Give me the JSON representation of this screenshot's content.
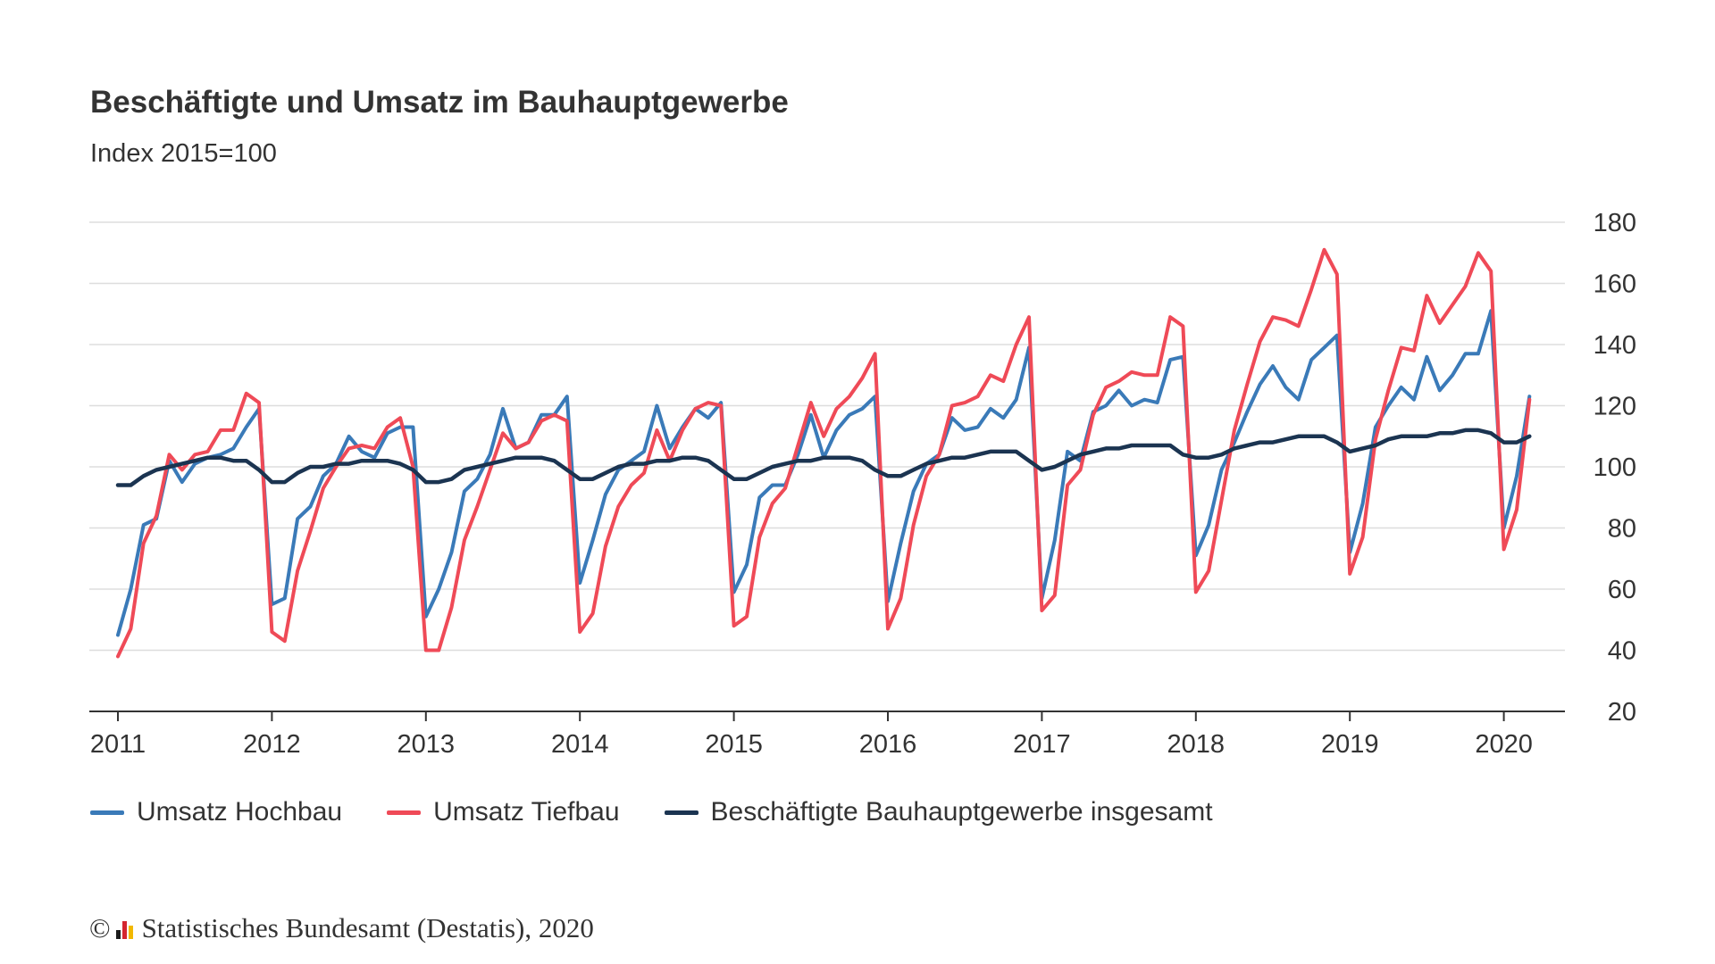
{
  "title": "Beschäftigte und Umsatz im Bauhauptgewerbe",
  "subtitle": "Index 2015=100",
  "footer": {
    "copyright_symbol": "©",
    "source": "Statistisches Bundesamt (Destatis), 2020"
  },
  "chart_data": {
    "type": "line",
    "title": "Beschäftigte und Umsatz im Bauhauptgewerbe",
    "subtitle": "Index 2015=100",
    "x_start": "2011-01",
    "x_frequency": "monthly",
    "x_tick_labels": [
      "2011",
      "2012",
      "2013",
      "2014",
      "2015",
      "2016",
      "2017",
      "2018",
      "2019",
      "2020"
    ],
    "y_tick_labels": [
      "20",
      "40",
      "60",
      "80",
      "100",
      "120",
      "140",
      "160",
      "180"
    ],
    "ylim": [
      20,
      180
    ],
    "xlim": [
      "2011-01",
      "2020-03"
    ],
    "grid": true,
    "y_axis_position": "right",
    "legend_position": "bottom",
    "series": [
      {
        "name": "Umsatz Hochbau",
        "color": "#3a7ab8",
        "values": [
          45,
          60,
          81,
          83,
          102,
          95,
          101,
          103,
          104,
          106,
          113,
          119,
          55,
          57,
          83,
          87,
          97,
          101,
          110,
          105,
          103,
          111,
          113,
          113,
          51,
          60,
          72,
          92,
          96,
          104,
          119,
          106,
          108,
          117,
          117,
          123,
          62,
          76,
          91,
          99,
          102,
          105,
          120,
          106,
          113,
          119,
          116,
          121,
          59,
          68,
          90,
          94,
          94,
          104,
          117,
          103,
          112,
          117,
          119,
          123,
          56,
          75,
          92,
          101,
          104,
          116,
          112,
          113,
          119,
          116,
          122,
          139,
          57,
          76,
          105,
          102,
          118,
          120,
          125,
          120,
          122,
          121,
          135,
          136,
          71,
          81,
          99,
          108,
          118,
          127,
          133,
          126,
          122,
          135,
          139,
          143,
          72,
          88,
          113,
          120,
          126,
          122,
          136,
          125,
          130,
          137,
          137,
          151,
          80,
          97,
          123
        ]
      },
      {
        "name": "Umsatz Tiefbau",
        "color": "#ef4a57",
        "values": [
          38,
          47,
          75,
          84,
          104,
          99,
          104,
          105,
          112,
          112,
          124,
          121,
          46,
          43,
          66,
          79,
          93,
          100,
          106,
          107,
          106,
          113,
          116,
          100,
          40,
          40,
          54,
          76,
          87,
          99,
          111,
          106,
          108,
          115,
          117,
          115,
          46,
          52,
          74,
          87,
          94,
          98,
          112,
          102,
          112,
          119,
          121,
          120,
          48,
          51,
          77,
          88,
          93,
          107,
          121,
          110,
          119,
          123,
          129,
          137,
          47,
          57,
          81,
          97,
          104,
          120,
          121,
          123,
          130,
          128,
          140,
          149,
          53,
          58,
          94,
          99,
          117,
          126,
          128,
          131,
          130,
          130,
          149,
          146,
          59,
          66,
          89,
          112,
          127,
          141,
          149,
          148,
          146,
          158,
          171,
          163,
          65,
          77,
          109,
          125,
          139,
          138,
          156,
          147,
          153,
          159,
          170,
          164,
          73,
          86,
          122
        ]
      },
      {
        "name": "Beschäftigte Bauhauptgewerbe insgesamt",
        "color": "#1b3451",
        "values": [
          94,
          94,
          97,
          99,
          100,
          101,
          102,
          103,
          103,
          102,
          102,
          99,
          95,
          95,
          98,
          100,
          100,
          101,
          101,
          102,
          102,
          102,
          101,
          99,
          95,
          95,
          96,
          99,
          100,
          101,
          102,
          103,
          103,
          103,
          102,
          99,
          96,
          96,
          98,
          100,
          101,
          101,
          102,
          102,
          103,
          103,
          102,
          99,
          96,
          96,
          98,
          100,
          101,
          102,
          102,
          103,
          103,
          103,
          102,
          99,
          97,
          97,
          99,
          101,
          102,
          103,
          103,
          104,
          105,
          105,
          105,
          102,
          99,
          100,
          102,
          104,
          105,
          106,
          106,
          107,
          107,
          107,
          107,
          104,
          103,
          103,
          104,
          106,
          107,
          108,
          108,
          109,
          110,
          110,
          110,
          108,
          105,
          106,
          107,
          109,
          110,
          110,
          110,
          111,
          111,
          112,
          112,
          111,
          108,
          108,
          110
        ]
      }
    ]
  }
}
